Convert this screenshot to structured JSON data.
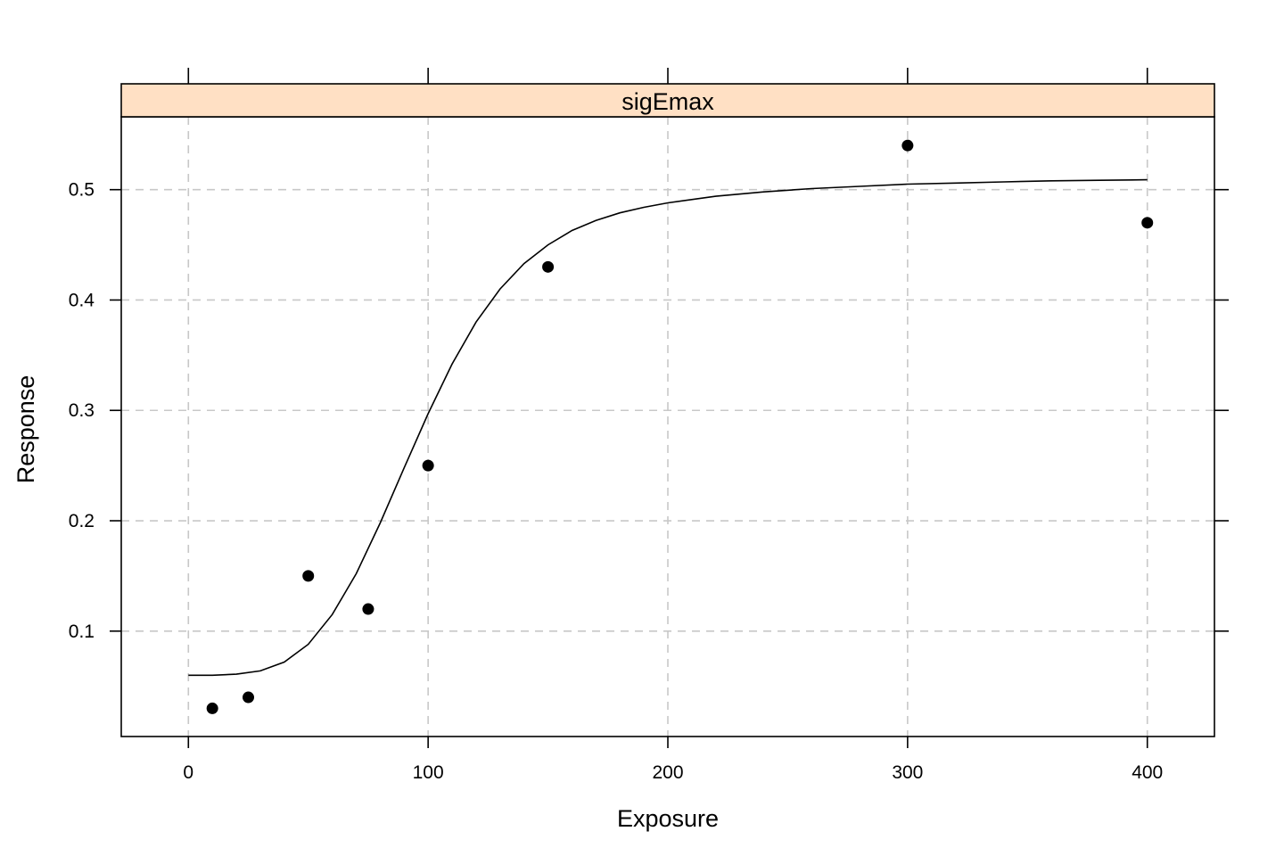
{
  "chart_data": {
    "type": "scatter",
    "panel_title": "sigEmax",
    "xlabel": "Exposure",
    "ylabel": "Response",
    "xlim": [
      -28,
      428
    ],
    "ylim": [
      0.0045,
      0.566
    ],
    "x_ticks": [
      {
        "value": 0,
        "label": "0"
      },
      {
        "value": 100,
        "label": "100"
      },
      {
        "value": 200,
        "label": "200"
      },
      {
        "value": 300,
        "label": "300"
      },
      {
        "value": 400,
        "label": "400"
      }
    ],
    "y_ticks": [
      {
        "value": 0.1,
        "label": "0.1"
      },
      {
        "value": 0.2,
        "label": "0.2"
      },
      {
        "value": 0.3,
        "label": "0.3"
      },
      {
        "value": 0.4,
        "label": "0.4"
      },
      {
        "value": 0.5,
        "label": "0.5"
      }
    ],
    "grid": true,
    "strip_color": "#ffe0c4",
    "series": [
      {
        "type": "scatter",
        "x": [
          10,
          25,
          50,
          75,
          100,
          150,
          300,
          400
        ],
        "y": [
          0.03,
          0.04,
          0.15,
          0.12,
          0.25,
          0.43,
          0.54,
          0.47
        ]
      },
      {
        "type": "line",
        "x": [
          0,
          10,
          20,
          30,
          40,
          50,
          60,
          70,
          80,
          90,
          100,
          110,
          120,
          130,
          140,
          150,
          160,
          170,
          180,
          190,
          200,
          220,
          240,
          260,
          280,
          300,
          320,
          340,
          360,
          380,
          400
        ],
        "y": [
          0.06,
          0.06,
          0.061,
          0.064,
          0.072,
          0.088,
          0.115,
          0.152,
          0.198,
          0.248,
          0.297,
          0.342,
          0.38,
          0.41,
          0.433,
          0.45,
          0.463,
          0.472,
          0.479,
          0.484,
          0.488,
          0.494,
          0.498,
          0.501,
          0.503,
          0.505,
          0.506,
          0.507,
          0.508,
          0.5085,
          0.509
        ]
      }
    ]
  }
}
